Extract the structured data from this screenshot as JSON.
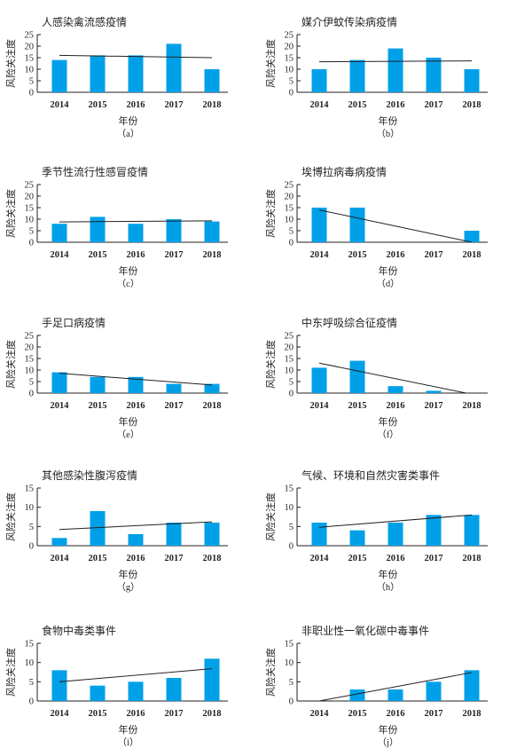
{
  "chart_data": [
    {
      "type": "bar",
      "title": "人感染禽流感疫情",
      "caption": "（a）",
      "xlabel": "年份",
      "ylabel": "风险关注度",
      "categories": [
        "2014",
        "2015",
        "2016",
        "2017",
        "2018"
      ],
      "values": [
        14,
        16,
        16,
        21,
        10
      ],
      "ylim": [
        0,
        25
      ],
      "yticks": [
        "0",
        "5",
        "10",
        "15",
        "20",
        "25"
      ],
      "trend": [
        16,
        15
      ]
    },
    {
      "type": "bar",
      "title": "媒介伊蚊传染病疫情",
      "caption": "（b）",
      "xlabel": "年份",
      "ylabel": "风险关注度",
      "categories": [
        "2014",
        "2015",
        "2016",
        "2017",
        "2018"
      ],
      "values": [
        10,
        14,
        19,
        15,
        10
      ],
      "ylim": [
        0,
        25
      ],
      "yticks": [
        "0",
        "5",
        "10",
        "15",
        "20",
        "25"
      ],
      "trend": [
        13.2,
        13.6
      ]
    },
    {
      "type": "bar",
      "title": "季节性流行性感冒疫情",
      "caption": "（c）",
      "xlabel": "年份",
      "ylabel": "风险关注度",
      "categories": [
        "2014",
        "2015",
        "2016",
        "2017",
        "2018"
      ],
      "values": [
        8,
        11,
        8,
        10,
        9
      ],
      "ylim": [
        0,
        25
      ],
      "yticks": [
        "0",
        "5",
        "10",
        "15",
        "20",
        "25"
      ],
      "trend": [
        8.8,
        9.3
      ]
    },
    {
      "type": "bar",
      "title": "埃博拉病毒病疫情",
      "caption": "（d）",
      "xlabel": "年份",
      "ylabel": "风险关注度",
      "categories": [
        "2014",
        "2015",
        "2016",
        "2017",
        "2018"
      ],
      "values": [
        15,
        15,
        0,
        0,
        5
      ],
      "ylim": [
        0,
        25
      ],
      "yticks": [
        "0",
        "5",
        "10",
        "15",
        "20",
        "25"
      ],
      "trend": [
        14,
        0
      ]
    },
    {
      "type": "bar",
      "title": "手足口病疫情",
      "caption": "（e）",
      "xlabel": "年份",
      "ylabel": "风险关注度",
      "categories": [
        "2014",
        "2015",
        "2016",
        "2017",
        "2018"
      ],
      "values": [
        9,
        7,
        7,
        4,
        4
      ],
      "ylim": [
        0,
        25
      ],
      "yticks": [
        "0",
        "5",
        "10",
        "15",
        "20",
        "25"
      ],
      "trend": [
        8.6,
        3.5
      ]
    },
    {
      "type": "bar",
      "title": "中东呼吸综合征疫情",
      "caption": "（f）",
      "xlabel": "年份",
      "ylabel": "风险关注度",
      "categories": [
        "2014",
        "2015",
        "2016",
        "2017",
        "2018"
      ],
      "values": [
        11,
        14,
        3,
        1,
        0
      ],
      "ylim": [
        0,
        25
      ],
      "yticks": [
        "0",
        "5",
        "10",
        "15",
        "20",
        "25"
      ],
      "trend": [
        13,
        -0.5
      ]
    },
    {
      "type": "bar",
      "title": "其他感染性腹泻疫情",
      "caption": "（g）",
      "xlabel": "年份",
      "ylabel": "风险关注度",
      "categories": [
        "2014",
        "2015",
        "2016",
        "2017",
        "2018"
      ],
      "values": [
        2,
        9,
        3,
        6,
        6
      ],
      "ylim": [
        0,
        15
      ],
      "yticks": [
        "0",
        "5",
        "10",
        "15"
      ],
      "trend": [
        4.2,
        6.2
      ]
    },
    {
      "type": "bar",
      "title": "气候、环境和自然灾害类事件",
      "caption": "（h）",
      "xlabel": "年份",
      "ylabel": "风险关注度",
      "categories": [
        "2014",
        "2015",
        "2016",
        "2017",
        "2018"
      ],
      "values": [
        6,
        4,
        6,
        8,
        8
      ],
      "ylim": [
        0,
        15
      ],
      "yticks": [
        "0",
        "5",
        "10",
        "15"
      ],
      "trend": [
        4.8,
        8
      ]
    },
    {
      "type": "bar",
      "title": "食物中毒类事件",
      "caption": "（i）",
      "xlabel": "年份",
      "ylabel": "风险关注度",
      "categories": [
        "2014",
        "2015",
        "2016",
        "2017",
        "2018"
      ],
      "values": [
        8,
        4,
        5,
        6,
        11
      ],
      "ylim": [
        0,
        15
      ],
      "yticks": [
        "0",
        "5",
        "10",
        "15"
      ],
      "trend": [
        5,
        8.4
      ]
    },
    {
      "type": "bar",
      "title": "非职业性一氧化碳中毒事件",
      "caption": "（j）",
      "xlabel": "年份",
      "ylabel": "风险关注度",
      "categories": [
        "2014",
        "2015",
        "2016",
        "2017",
        "2018"
      ],
      "values": [
        0,
        3,
        3,
        5,
        8
      ],
      "ylim": [
        0,
        15
      ],
      "yticks": [
        "0",
        "5",
        "10",
        "15"
      ],
      "trend": [
        0,
        7.4
      ]
    }
  ],
  "colors": {
    "bar": "#00a0e9",
    "axis": "#231f20",
    "trend": "#231f20"
  }
}
